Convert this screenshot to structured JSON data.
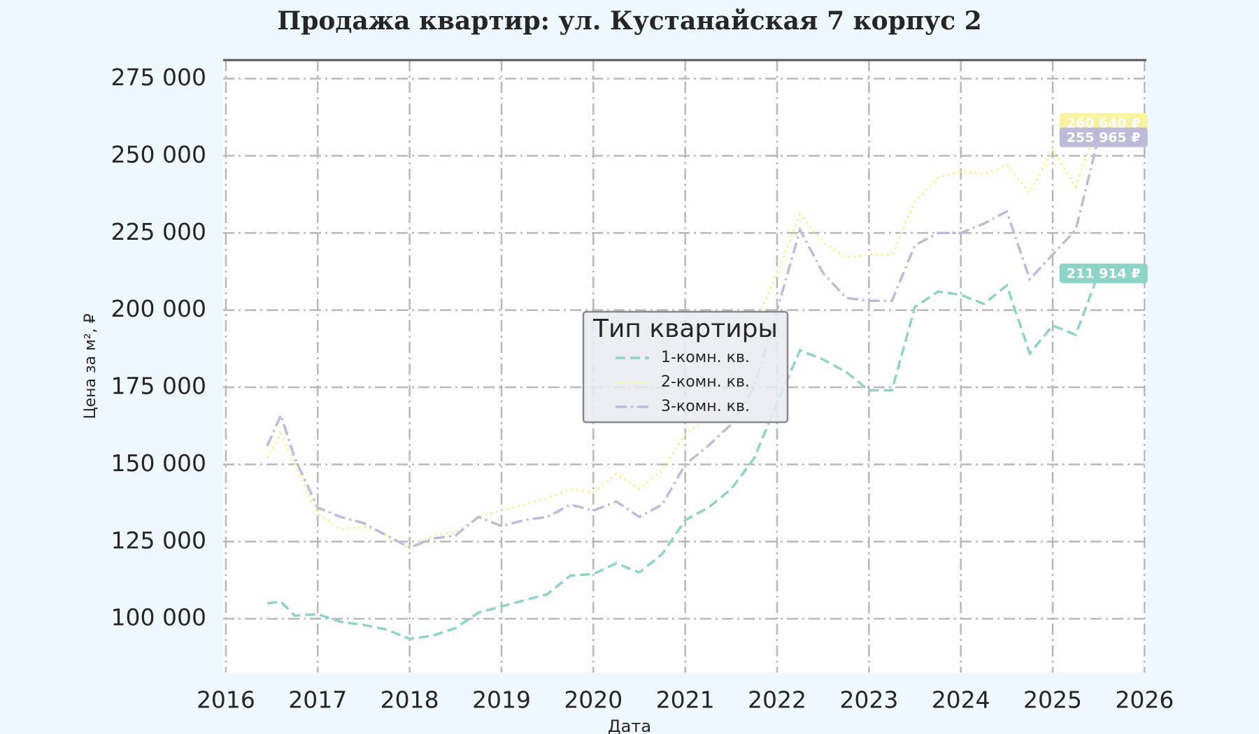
{
  "chart_data": {
    "type": "line",
    "title": "Продажа квартир: ул. Кустанайская 7 корпус 2",
    "x_label": "Дата",
    "y_label": "Цена за м², ₽",
    "legend_title": "Тип квартиры",
    "legend": "center",
    "grid": true,
    "x": [
      2016.45,
      2016.6,
      2016.75,
      2017,
      2017.25,
      2017.5,
      2017.75,
      2018,
      2018.25,
      2018.5,
      2018.75,
      2019,
      2019.25,
      2019.5,
      2019.75,
      2020,
      2020.25,
      2020.5,
      2020.75,
      2021,
      2021.25,
      2021.5,
      2021.75,
      2022,
      2022.25,
      2022.5,
      2022.75,
      2023,
      2023.25,
      2023.5,
      2023.75,
      2024,
      2024.25,
      2024.5,
      2024.75,
      2025,
      2025.25,
      2025.5
    ],
    "xlim": [
      2015.97,
      2026.02
    ],
    "xticks": [
      2016,
      2017,
      2018,
      2019,
      2020,
      2021,
      2022,
      2023,
      2024,
      2025,
      2026
    ],
    "ylim": [
      82600,
      281000
    ],
    "yticks": [
      {
        "value": 100000,
        "label": "100 000"
      },
      {
        "value": 125000,
        "label": "125 000"
      },
      {
        "value": 150000,
        "label": "150 000"
      },
      {
        "value": 175000,
        "label": "175 000"
      },
      {
        "value": 200000,
        "label": "200 000"
      },
      {
        "value": 225000,
        "label": "225 000"
      },
      {
        "value": 250000,
        "label": "250 000"
      },
      {
        "value": 275000,
        "label": "275 000"
      }
    ],
    "series": [
      {
        "name": "1-комн. кв.",
        "color": "#8dd3c7",
        "linestyle": "dashed",
        "values": [
          105000,
          105500,
          101000,
          101500,
          99000,
          98000,
          96500,
          93500,
          94500,
          97000,
          102000,
          104000,
          106000,
          108000,
          114000,
          114500,
          118000,
          115000,
          121000,
          132000,
          136000,
          142000,
          152000,
          170000,
          187000,
          184000,
          180000,
          174000,
          174000,
          201000,
          206000,
          205000,
          202000,
          208000,
          186000,
          195000,
          192000,
          211914
        ],
        "value_labels": [
          null,
          null,
          null,
          null,
          null,
          null,
          null,
          null,
          null,
          null,
          null,
          null,
          null,
          null,
          null,
          null,
          null,
          null,
          null,
          null,
          null,
          null,
          null,
          null,
          null,
          null,
          null,
          null,
          null,
          null,
          null,
          null,
          null,
          null,
          null,
          null,
          null,
          "211 914 ₽"
        ]
      },
      {
        "name": "2-комн. кв.",
        "color": "#f7f3a0",
        "linestyle": "dotted",
        "values": [
          152000,
          160000,
          150000,
          134000,
          129000,
          130000,
          127000,
          123000,
          127000,
          128000,
          133000,
          135000,
          137000,
          139000,
          142000,
          141000,
          147000,
          142000,
          148000,
          160000,
          165000,
          178000,
          195000,
          212000,
          231000,
          222000,
          217000,
          218000,
          218000,
          235000,
          243000,
          245000,
          244000,
          247000,
          238000,
          252000,
          240000,
          260640
        ],
        "value_labels": [
          null,
          null,
          null,
          null,
          null,
          null,
          null,
          null,
          null,
          null,
          null,
          null,
          null,
          null,
          null,
          null,
          null,
          null,
          null,
          null,
          null,
          null,
          null,
          null,
          null,
          null,
          null,
          null,
          null,
          null,
          null,
          null,
          null,
          null,
          null,
          null,
          null,
          "260 640 ₽"
        ]
      },
      {
        "name": "3-комн. кв.",
        "color": "#bebada",
        "linestyle": "dashdot",
        "values": [
          156000,
          166000,
          152000,
          136000,
          133000,
          131000,
          127000,
          123000,
          126000,
          127000,
          133000,
          130000,
          132000,
          133000,
          137000,
          135000,
          138000,
          133000,
          137000,
          150000,
          156000,
          163000,
          175000,
          200000,
          226000,
          212000,
          204000,
          203000,
          203000,
          221000,
          225000,
          225000,
          228000,
          232000,
          210000,
          218000,
          226000,
          255965
        ],
        "value_labels": [
          null,
          null,
          null,
          null,
          null,
          null,
          null,
          null,
          null,
          null,
          null,
          null,
          null,
          null,
          null,
          null,
          null,
          null,
          null,
          null,
          null,
          null,
          null,
          null,
          null,
          null,
          null,
          null,
          null,
          null,
          null,
          null,
          null,
          null,
          null,
          null,
          null,
          "255 965 ₽"
        ]
      }
    ]
  }
}
